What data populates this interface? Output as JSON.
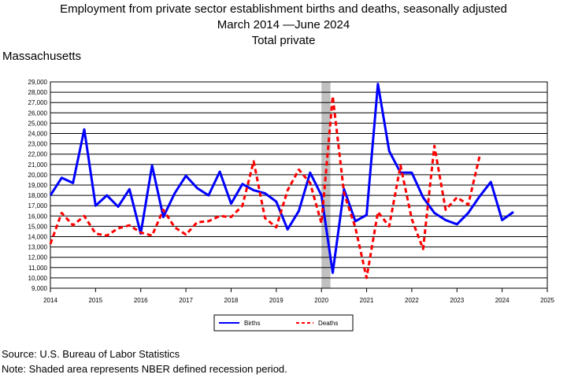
{
  "titles": {
    "line1": "Employment from private sector establishment births and deaths, seasonally adjusted",
    "line2": "March 2014 —June 2024",
    "line3": "Total private"
  },
  "state": "Massachusetts",
  "notes": {
    "source": "Source: U.S. Bureau of Labor Statistics",
    "note": "Note: Shaded area represents NBER defined recession period."
  },
  "colors": {
    "births": "#0000ff",
    "deaths": "#ff0000",
    "recession": "#c0c0c0"
  },
  "chart_data": {
    "type": "line",
    "x_unit": "year (decimal)",
    "xlim": [
      2014,
      2025
    ],
    "ylim": [
      9000,
      29000
    ],
    "x_ticks": [
      "2014",
      "2015",
      "2016",
      "2017",
      "2018",
      "2019",
      "2020",
      "2021",
      "2022",
      "2023",
      "2024",
      "2025"
    ],
    "y_ticks": [
      "9,000",
      "10,000",
      "11,000",
      "12,000",
      "13,000",
      "14,000",
      "15,000",
      "16,000",
      "17,000",
      "18,000",
      "19,000",
      "20,000",
      "21,000",
      "22,000",
      "23,000",
      "24,000",
      "25,000",
      "26,000",
      "27,000",
      "28,000",
      "29,000"
    ],
    "recession": [
      2020.0,
      2020.2
    ],
    "grid": true,
    "legend_position": "bottom-center",
    "series": [
      {
        "name": "Births",
        "style": "solid",
        "x": [
          2014.0,
          2014.25,
          2014.5,
          2014.75,
          2015.0,
          2015.25,
          2015.5,
          2015.75,
          2016.0,
          2016.25,
          2016.5,
          2016.75,
          2017.0,
          2017.25,
          2017.5,
          2017.75,
          2018.0,
          2018.25,
          2018.5,
          2018.75,
          2019.0,
          2019.25,
          2019.5,
          2019.75,
          2020.0,
          2020.25,
          2020.5,
          2020.75,
          2021.0,
          2021.25,
          2021.5,
          2021.75,
          2022.0,
          2022.25,
          2022.5,
          2022.75,
          2023.0,
          2023.25,
          2023.5,
          2023.75,
          2024.0,
          2024.25
        ],
        "values": [
          18000,
          19700,
          19200,
          24400,
          17000,
          18000,
          16900,
          18600,
          14300,
          20900,
          15900,
          18200,
          19900,
          18700,
          18000,
          20300,
          17200,
          19100,
          18500,
          18200,
          17400,
          14700,
          16500,
          20200,
          18000,
          10500,
          18600,
          15500,
          16100,
          28800,
          22300,
          20200,
          20200,
          17800,
          16300,
          15600,
          15200,
          16300,
          17900,
          19300,
          15600,
          16400
        ]
      },
      {
        "name": "Deaths",
        "style": "dashed",
        "x": [
          2014.0,
          2014.25,
          2014.5,
          2014.75,
          2015.0,
          2015.25,
          2015.5,
          2015.75,
          2016.0,
          2016.25,
          2016.5,
          2016.75,
          2017.0,
          2017.25,
          2017.5,
          2017.75,
          2018.0,
          2018.25,
          2018.5,
          2018.75,
          2019.0,
          2019.25,
          2019.5,
          2019.75,
          2020.0,
          2020.25,
          2020.5,
          2020.75,
          2021.0,
          2021.25,
          2021.5,
          2021.75,
          2022.0,
          2022.25,
          2022.5,
          2022.75,
          2023.0,
          2023.25,
          2023.5
        ],
        "values": [
          13300,
          16300,
          15100,
          16000,
          14300,
          14100,
          14800,
          15100,
          14400,
          14100,
          16600,
          14900,
          14200,
          15400,
          15500,
          16000,
          15900,
          17000,
          21300,
          15800,
          14900,
          18500,
          20500,
          19200,
          15300,
          27600,
          18200,
          14900,
          10000,
          16400,
          15000,
          20900,
          15700,
          12800,
          22800,
          16600,
          17800,
          17100,
          21800
        ]
      }
    ]
  }
}
